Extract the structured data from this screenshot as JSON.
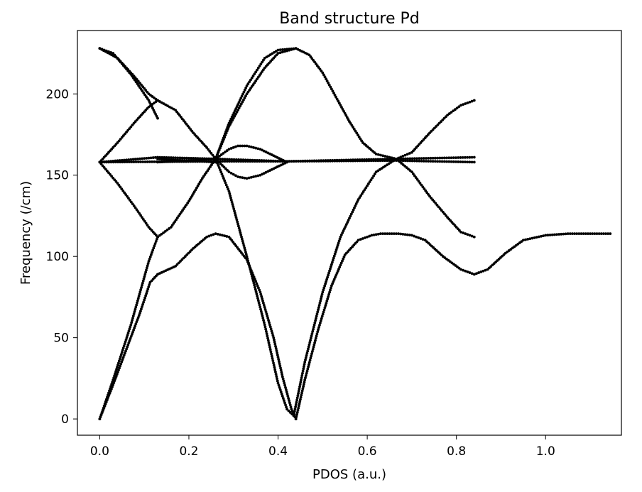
{
  "chart_data": {
    "type": "scatter",
    "title": "Band structure Pd",
    "xlabel": "PDOS (a.u.)",
    "ylabel": "Frequency (/cm)",
    "xlim": [
      -0.05,
      1.17
    ],
    "ylim": [
      -10,
      239
    ],
    "xticks": [
      0.0,
      0.2,
      0.4,
      0.6,
      0.8,
      1.0
    ],
    "xtick_labels": [
      "0.0",
      "0.2",
      "0.4",
      "0.6",
      "0.8",
      "1.0"
    ],
    "yticks": [
      0,
      50,
      100,
      150,
      200
    ],
    "ytick_labels": [
      "0",
      "50",
      "100",
      "150",
      "200"
    ],
    "grid": false,
    "marker_color": "#000000",
    "series": [
      {
        "x": [
          0.0,
          0.03,
          0.06,
          0.09,
          0.113,
          0.13
        ],
        "y": [
          0,
          21,
          43,
          65,
          84,
          89
        ]
      },
      {
        "x": [
          0.13,
          0.17,
          0.21,
          0.24,
          0.26,
          0.29,
          0.33,
          0.36,
          0.39,
          0.41,
          0.43,
          0.44
        ],
        "y": [
          89,
          94,
          105,
          112,
          114,
          112,
          98,
          78,
          50,
          26,
          6,
          0
        ]
      },
      {
        "x": [
          0.44,
          0.46,
          0.49,
          0.52,
          0.55,
          0.58,
          0.61,
          0.63,
          0.67,
          0.7,
          0.73,
          0.77,
          0.81,
          0.84
        ],
        "y": [
          0,
          24,
          55,
          82,
          101,
          110,
          113,
          114,
          114,
          113,
          110,
          100,
          92,
          89
        ]
      },
      {
        "x": [
          0.84,
          0.87,
          0.91,
          0.95,
          1.0,
          1.05,
          1.1,
          1.145
        ],
        "y": [
          89,
          92,
          102,
          110,
          113,
          114,
          114,
          114
        ]
      },
      {
        "x": [
          0.0,
          0.03,
          0.07,
          0.11,
          0.13
        ],
        "y": [
          0,
          24,
          58,
          97,
          112
        ]
      },
      {
        "x": [
          0.13,
          0.16,
          0.2,
          0.23,
          0.26
        ],
        "y": [
          112,
          118,
          134,
          148,
          160
        ]
      },
      {
        "x": [
          0.26,
          0.29,
          0.33,
          0.37,
          0.4,
          0.42,
          0.435
        ],
        "y": [
          160,
          140,
          100,
          58,
          22,
          6,
          2
        ]
      },
      {
        "x": [
          0.435,
          0.46,
          0.5,
          0.54,
          0.58,
          0.62,
          0.665
        ],
        "y": [
          2,
          35,
          78,
          112,
          135,
          152,
          160
        ]
      },
      {
        "x": [
          0.665,
          0.7,
          0.74,
          0.78,
          0.81,
          0.84
        ],
        "y": [
          160,
          152,
          137,
          124,
          115,
          112
        ]
      },
      {
        "x": [
          0.0,
          0.04,
          0.08,
          0.11,
          0.13
        ],
        "y": [
          158,
          145,
          130,
          118,
          112
        ]
      },
      {
        "x": [
          0.0,
          0.04,
          0.08,
          0.11,
          0.13
        ],
        "y": [
          158,
          170,
          183,
          192,
          196
        ]
      },
      {
        "x": [
          0.13,
          0.17,
          0.21,
          0.24,
          0.26
        ],
        "y": [
          196,
          190,
          176,
          167,
          160
        ]
      },
      {
        "x": [
          0.0,
          0.03,
          0.07,
          0.11,
          0.13
        ],
        "y": [
          228,
          225,
          212,
          196,
          185
        ]
      },
      {
        "x": [
          0.0,
          0.04,
          0.08,
          0.11,
          0.13
        ],
        "y": [
          228,
          222,
          210,
          200,
          196
        ]
      },
      {
        "x": [
          0.26,
          0.29,
          0.33,
          0.37,
          0.4,
          0.44,
          0.47,
          0.5,
          0.53,
          0.56,
          0.59,
          0.62,
          0.665
        ],
        "y": [
          160,
          182,
          205,
          222,
          227,
          228,
          224,
          213,
          198,
          183,
          170,
          163,
          160
        ]
      },
      {
        "x": [
          0.26,
          0.29,
          0.33,
          0.37,
          0.4,
          0.44
        ],
        "y": [
          160,
          180,
          200,
          216,
          225,
          228
        ]
      },
      {
        "x": [
          0.665,
          0.7,
          0.74,
          0.78,
          0.81,
          0.84
        ],
        "y": [
          160,
          164,
          176,
          187,
          193,
          196
        ]
      },
      {
        "x": [
          0.26,
          0.29,
          0.31,
          0.33,
          0.36,
          0.39,
          0.42
        ],
        "y": [
          160,
          166,
          168,
          168,
          166,
          162,
          158
        ]
      },
      {
        "x": [
          0.26,
          0.29,
          0.31,
          0.33,
          0.36,
          0.39,
          0.42
        ],
        "y": [
          160,
          152,
          149,
          148,
          150,
          154,
          158
        ]
      },
      {
        "x": [
          0.0,
          0.26,
          0.42,
          0.665,
          0.84
        ],
        "y": [
          158,
          158.5,
          158.5,
          159,
          158
        ]
      },
      {
        "x": [
          0.0,
          0.13,
          0.26,
          0.42,
          0.665,
          0.84
        ],
        "y": [
          158,
          161,
          160,
          158.5,
          160,
          161
        ]
      },
      {
        "x": [
          0.13,
          0.26
        ],
        "y": [
          158,
          160
        ]
      },
      {
        "x": [
          0.13,
          0.26
        ],
        "y": [
          160,
          158
        ]
      }
    ]
  }
}
